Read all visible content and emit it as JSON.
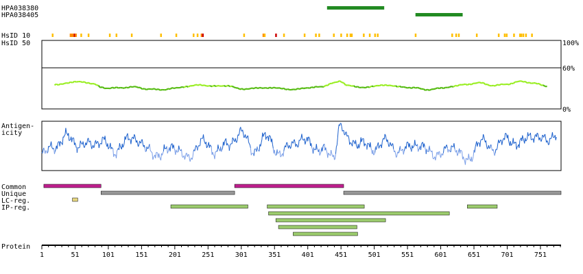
{
  "protein_length": 782,
  "antibodies": [
    {
      "name": "HPA038380",
      "start": 430,
      "end": 516
    },
    {
      "name": "HPA038405",
      "start": 563,
      "end": 634
    }
  ],
  "hsid": {
    "label10": "HsID 10",
    "label50": "HsID 50",
    "pct_labels": [
      "100%",
      "60%",
      "0%"
    ],
    "threshold_pct": 60,
    "markers": [
      {
        "pos": 17,
        "level": "low"
      },
      {
        "pos": 44,
        "level": "med"
      },
      {
        "pos": 46,
        "level": "med"
      },
      {
        "pos": 48,
        "level": "med"
      },
      {
        "pos": 50,
        "level": "high"
      },
      {
        "pos": 52,
        "level": "med"
      },
      {
        "pos": 60,
        "level": "low"
      },
      {
        "pos": 71,
        "level": "low"
      },
      {
        "pos": 103,
        "level": "low"
      },
      {
        "pos": 113,
        "level": "low"
      },
      {
        "pos": 136,
        "level": "low"
      },
      {
        "pos": 180,
        "level": "low"
      },
      {
        "pos": 203,
        "level": "low"
      },
      {
        "pos": 229,
        "level": "low"
      },
      {
        "pos": 235,
        "level": "low"
      },
      {
        "pos": 241,
        "level": "med"
      },
      {
        "pos": 243,
        "level": "high"
      },
      {
        "pos": 305,
        "level": "low"
      },
      {
        "pos": 334,
        "level": "med"
      },
      {
        "pos": 336,
        "level": "low"
      },
      {
        "pos": 353,
        "level": "high"
      },
      {
        "pos": 365,
        "level": "low"
      },
      {
        "pos": 396,
        "level": "low"
      },
      {
        "pos": 413,
        "level": "low"
      },
      {
        "pos": 418,
        "level": "low"
      },
      {
        "pos": 440,
        "level": "low"
      },
      {
        "pos": 451,
        "level": "low"
      },
      {
        "pos": 460,
        "level": "low"
      },
      {
        "pos": 465,
        "level": "low"
      },
      {
        "pos": 467,
        "level": "low"
      },
      {
        "pos": 485,
        "level": "low"
      },
      {
        "pos": 494,
        "level": "low"
      },
      {
        "pos": 502,
        "level": "low"
      },
      {
        "pos": 506,
        "level": "low"
      },
      {
        "pos": 563,
        "level": "low"
      },
      {
        "pos": 618,
        "level": "low"
      },
      {
        "pos": 624,
        "level": "low"
      },
      {
        "pos": 628,
        "level": "low"
      },
      {
        "pos": 655,
        "level": "low"
      },
      {
        "pos": 688,
        "level": "low"
      },
      {
        "pos": 697,
        "level": "low"
      },
      {
        "pos": 700,
        "level": "low"
      },
      {
        "pos": 711,
        "level": "low"
      },
      {
        "pos": 720,
        "level": "low"
      },
      {
        "pos": 722,
        "level": "low"
      },
      {
        "pos": 725,
        "level": "low"
      },
      {
        "pos": 729,
        "level": "low"
      },
      {
        "pos": 738,
        "level": "low"
      }
    ]
  },
  "antigenicity": {
    "label_line1": "Antigen-",
    "label_line2": "icity"
  },
  "region_labels": {
    "common": "Common",
    "unique": "Unique",
    "lc_reg": "LC-reg.",
    "ip_reg": "IP-reg."
  },
  "regions": {
    "common": [
      [
        4,
        90
      ],
      [
        291,
        455
      ]
    ],
    "unique": [
      [
        90,
        291
      ],
      [
        455,
        782
      ]
    ],
    "lc_reg": [
      [
        47,
        55
      ]
    ],
    "ip_reg": [
      [
        195,
        311
      ],
      [
        340,
        486
      ],
      [
        641,
        686
      ],
      [
        342,
        614
      ],
      [
        353,
        518
      ],
      [
        357,
        475
      ],
      [
        379,
        476
      ]
    ]
  },
  "colors": {
    "antibody": "#228b22",
    "hsid_low": "#ffbf00",
    "hsid_med": "#ff8c00",
    "hsid_high": "#cc0000",
    "identity_light": "#99ee22",
    "identity_dark": "#55bb11",
    "antigenicity_dark": "#1a5fcc",
    "antigenicity_light": "#7a9ee8",
    "common": "#c0208f",
    "unique": "#999999",
    "lc_reg": "#e6d680",
    "ip_reg": "#9ccc6e"
  },
  "axis": {
    "label": "Protein",
    "ticks": [
      1,
      51,
      101,
      151,
      201,
      251,
      301,
      351,
      401,
      451,
      501,
      551,
      601,
      651,
      701,
      751
    ]
  },
  "chart_data": [
    {
      "type": "bar",
      "title": "",
      "xlabel": "",
      "series": [
        {
          "name": "HPA038380",
          "start": 430,
          "end": 516
        },
        {
          "name": "HPA038405",
          "start": 563,
          "end": 634
        }
      ]
    },
    {
      "type": "line",
      "ylabel": "HsID 50",
      "ylim": [
        0,
        100
      ],
      "x": [
        20,
        40,
        60,
        80,
        90,
        100,
        120,
        140,
        160,
        180,
        200,
        220,
        240,
        260,
        280,
        300,
        320,
        340,
        360,
        380,
        400,
        420,
        440,
        450,
        460,
        480,
        500,
        520,
        540,
        560,
        580,
        600,
        620,
        640,
        660,
        680,
        700,
        720,
        740,
        760
      ],
      "values": [
        35,
        38,
        40,
        36,
        32,
        30,
        31,
        32,
        29,
        28,
        30,
        33,
        35,
        33,
        34,
        29,
        30,
        31,
        30,
        28,
        31,
        32,
        38,
        40,
        35,
        31,
        33,
        35,
        32,
        31,
        28,
        30,
        33,
        36,
        38,
        34,
        36,
        40,
        38,
        33
      ]
    },
    {
      "type": "line",
      "ylabel": "Antigenicity",
      "x": [
        1,
        20,
        40,
        60,
        90,
        110,
        140,
        160,
        180,
        200,
        220,
        240,
        260,
        280,
        300,
        320,
        340,
        360,
        380,
        400,
        420,
        440,
        450,
        460,
        480,
        500,
        520,
        540,
        560,
        580,
        600,
        620,
        640,
        660,
        680,
        700,
        720,
        740,
        760,
        775
      ],
      "values": [
        0.3,
        0.5,
        0.7,
        0.5,
        0.6,
        0.4,
        0.7,
        0.4,
        0.3,
        0.5,
        0.2,
        0.6,
        0.4,
        0.5,
        0.8,
        0.4,
        0.7,
        0.3,
        0.6,
        0.6,
        0.4,
        0.3,
        0.95,
        0.65,
        0.55,
        0.45,
        0.6,
        0.35,
        0.55,
        0.4,
        0.3,
        0.5,
        0.15,
        0.6,
        0.45,
        0.65,
        0.55,
        0.75,
        0.6,
        0.8
      ]
    }
  ]
}
